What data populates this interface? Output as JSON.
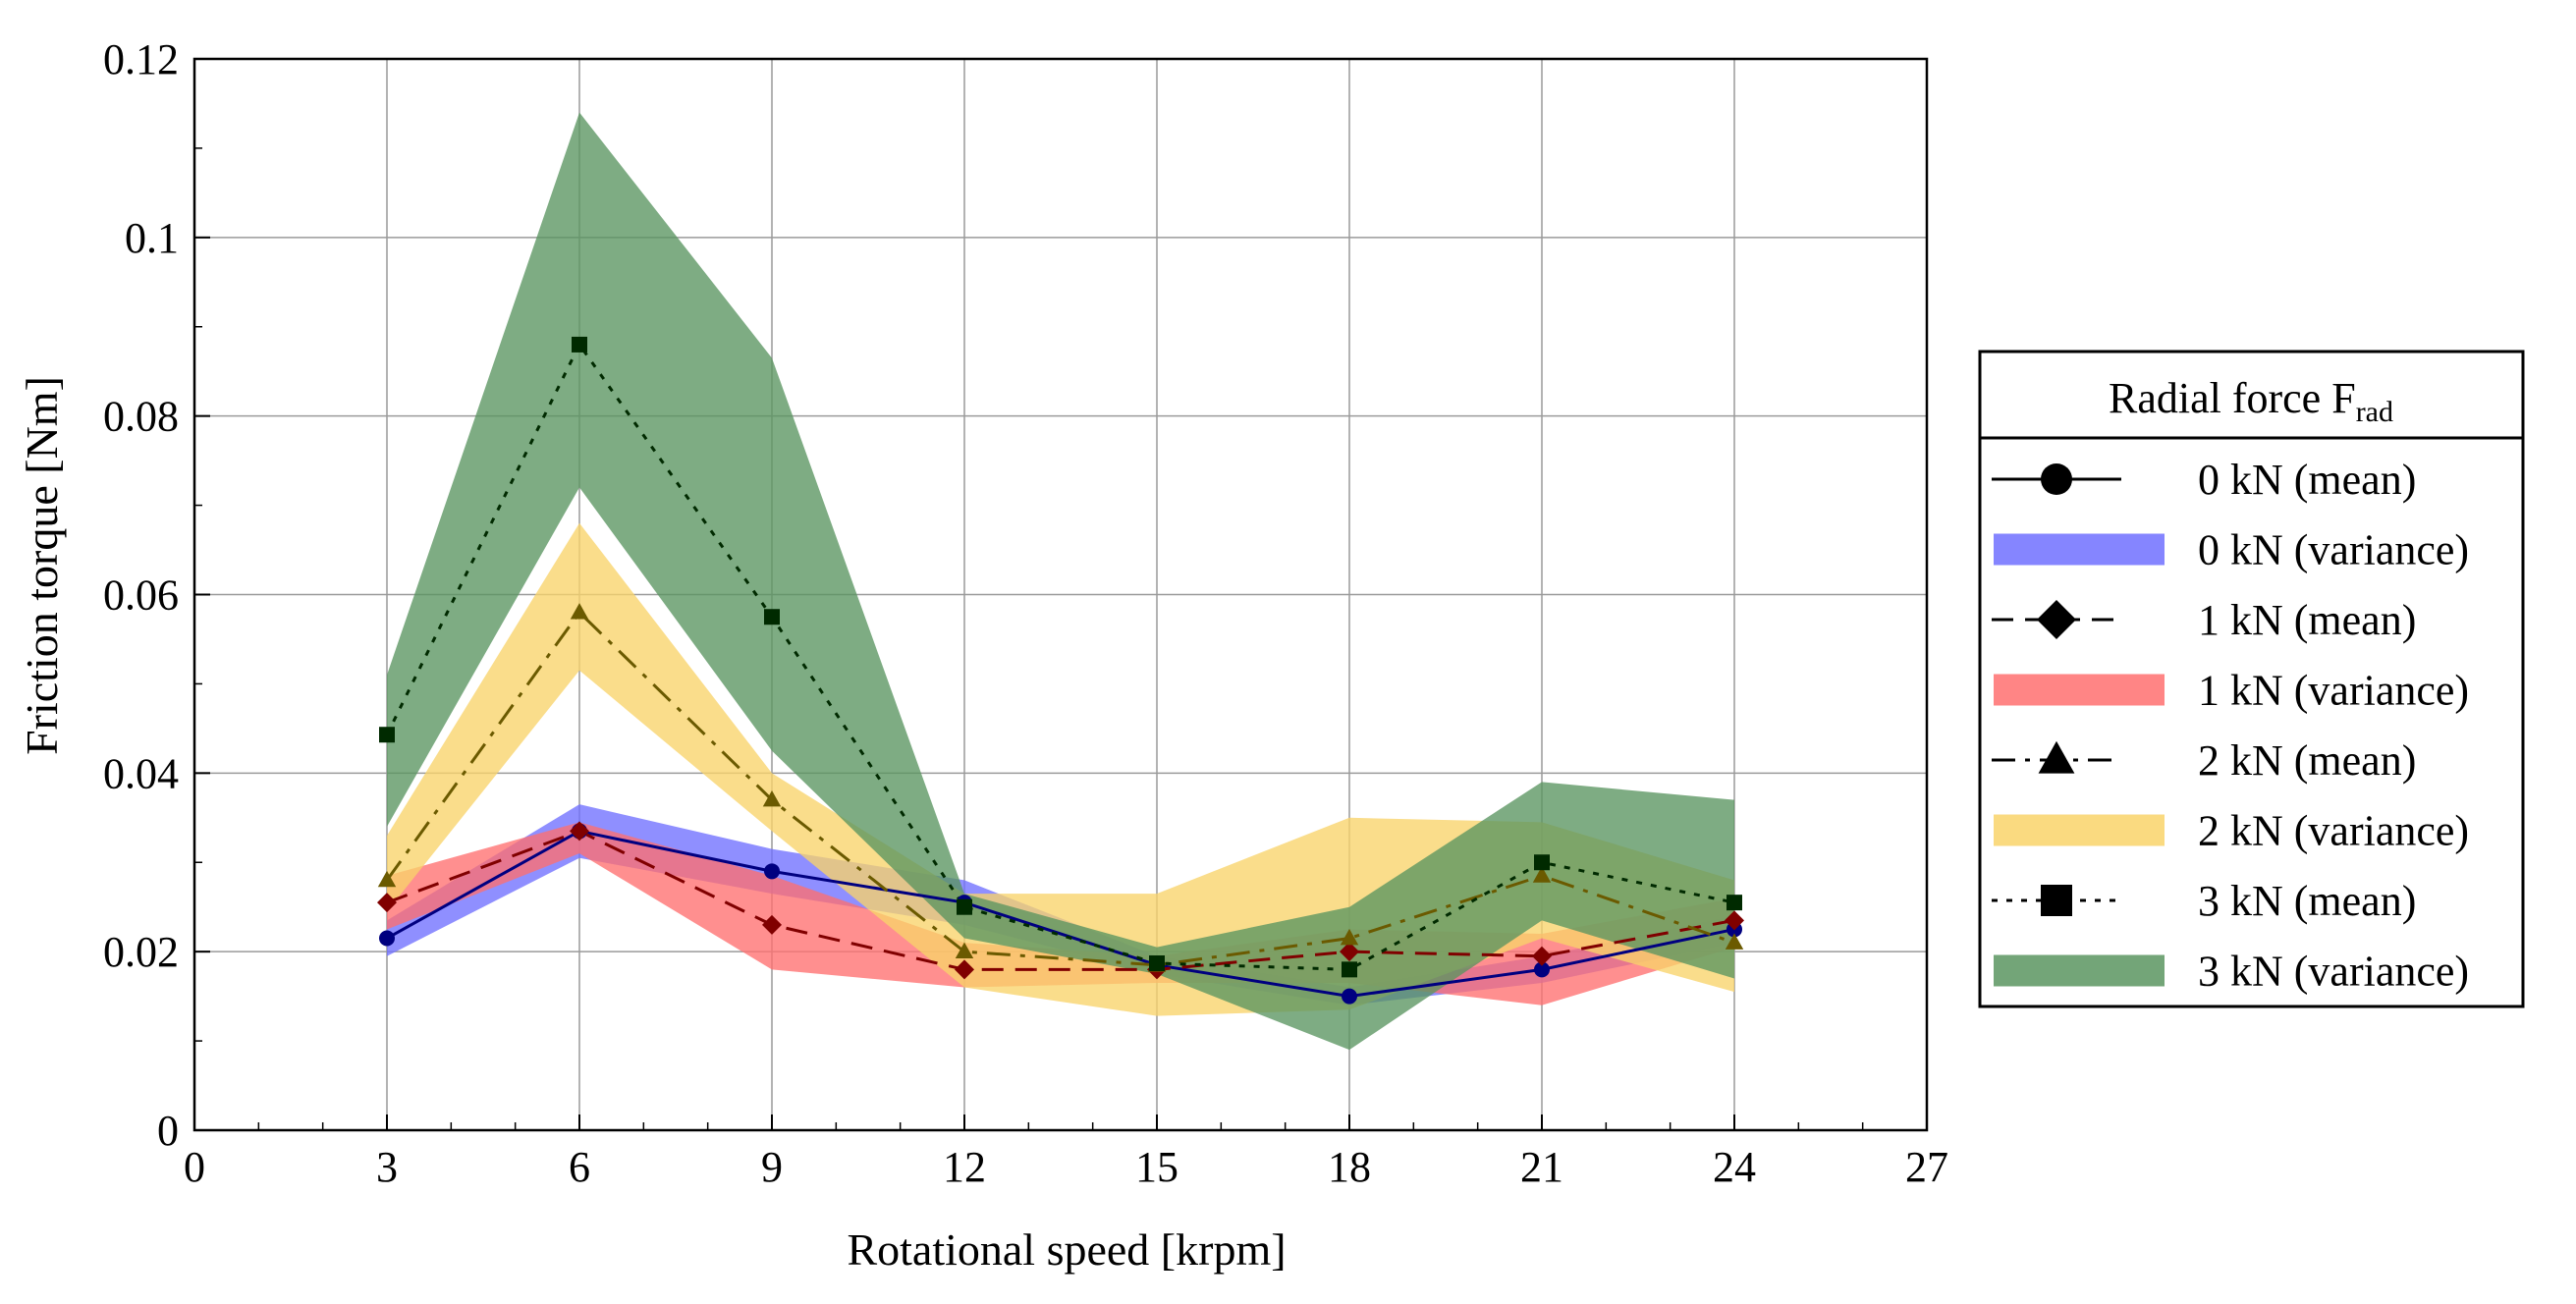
{
  "chart_data": {
    "type": "line",
    "title": "",
    "xlabel": "Rotational speed [krpm]",
    "ylabel": "Friction torque [Nm]",
    "xlim": [
      0,
      27
    ],
    "ylim": [
      0,
      0.12
    ],
    "grid": true,
    "x_ticks": [
      0,
      3,
      6,
      9,
      12,
      15,
      18,
      21,
      24,
      27
    ],
    "x_tick_labels": [
      "0",
      "3",
      "6",
      "9",
      "12",
      "15",
      "18",
      "21",
      "24",
      "27"
    ],
    "y_ticks": [
      0,
      0.02,
      0.04,
      0.06,
      0.08,
      0.1,
      0.12
    ],
    "y_tick_labels": [
      "0",
      "0.02",
      "0.04",
      "0.06",
      "0.08",
      "0.1",
      "0.12"
    ],
    "x": [
      3,
      6,
      9,
      12,
      15,
      18,
      21,
      24
    ],
    "legend": {
      "title_main": "Radial force F",
      "title_sub": "rad",
      "placement": "right"
    },
    "series": [
      {
        "name": "0 kN",
        "mean_label": "0 kN (mean)",
        "variance_label": "0 kN (variance)",
        "marker": "circle",
        "dash": "solid",
        "line_color": "#000080",
        "band_color": "#7070ff",
        "mean": [
          0.0215,
          0.0335,
          0.029,
          0.0255,
          0.0185,
          0.015,
          0.018,
          0.0225
        ],
        "upper": [
          0.0235,
          0.0365,
          0.0315,
          0.028,
          0.0195,
          0.016,
          0.0195,
          0.024
        ],
        "lower": [
          0.0195,
          0.0305,
          0.0265,
          0.023,
          0.0175,
          0.014,
          0.0165,
          0.021
        ]
      },
      {
        "name": "1 kN",
        "mean_label": "1 kN (mean)",
        "variance_label": "1 kN (variance)",
        "marker": "diamond",
        "dash": "dashed",
        "line_color": "#800000",
        "band_color": "#ff7070",
        "mean": [
          0.0255,
          0.0335,
          0.023,
          0.018,
          0.018,
          0.02,
          0.0195,
          0.0235
        ],
        "upper": [
          0.0285,
          0.0345,
          0.0285,
          0.021,
          0.0195,
          0.0225,
          0.022,
          0.026
        ],
        "lower": [
          0.0225,
          0.031,
          0.018,
          0.016,
          0.0165,
          0.0165,
          0.014,
          0.0205
        ]
      },
      {
        "name": "2 kN",
        "mean_label": "2 kN (mean)",
        "variance_label": "2 kN (variance)",
        "marker": "triangle",
        "dash": "dashdot",
        "line_color": "#6b5a00",
        "band_color": "#f9d46a",
        "mean": [
          0.028,
          0.058,
          0.037,
          0.02,
          0.0185,
          0.0215,
          0.0285,
          0.021
        ],
        "upper": [
          0.033,
          0.068,
          0.04,
          0.0265,
          0.0265,
          0.035,
          0.0345,
          0.028
        ],
        "lower": [
          0.0245,
          0.0515,
          0.0335,
          0.016,
          0.0128,
          0.0135,
          0.0215,
          0.0155
        ]
      },
      {
        "name": "3 kN",
        "mean_label": "3 kN (mean)",
        "variance_label": "3 kN (variance)",
        "marker": "square",
        "dash": "dotted",
        "line_color": "#002a00",
        "band_color": "#5a9560",
        "mean": [
          0.0443,
          0.088,
          0.0575,
          0.025,
          0.0187,
          0.018,
          0.03,
          0.0255
        ],
        "upper": [
          0.051,
          0.114,
          0.0865,
          0.0265,
          0.0205,
          0.025,
          0.039,
          0.037
        ],
        "lower": [
          0.034,
          0.072,
          0.0425,
          0.0215,
          0.0175,
          0.009,
          0.0235,
          0.017
        ]
      }
    ]
  }
}
